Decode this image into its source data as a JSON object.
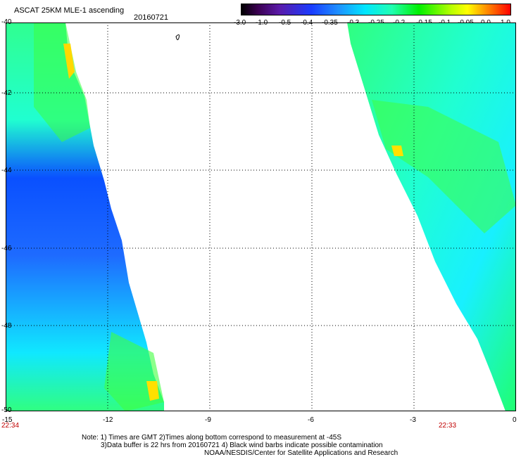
{
  "header": {
    "title": "ASCAT 25KM MLE-1 ascending",
    "date": "20160721"
  },
  "colorbar": {
    "labels": [
      "-3.0",
      "-1.0",
      "-0.5",
      "-0.4",
      "-0.35",
      "-0.3",
      "-0.25",
      "-0.2",
      "-0.15",
      "-0.1",
      "-0.05",
      "0.0",
      "1.0"
    ]
  },
  "axes": {
    "y_labels": [
      "-40",
      "-42",
      "-44",
      "-46",
      "-48",
      "-50"
    ],
    "x_labels": [
      "-15",
      "-12",
      "-9",
      "-6",
      "-3",
      "0"
    ],
    "time_left": "22:34",
    "time_right": "22:33"
  },
  "notes": {
    "line1": "Note: 1) Times are GMT 2)Times along bottom correspond to measurement at -45S",
    "line2": "3)Data buffer is 22 hrs from 20160721 4) Black wind barbs indicate possible contamination",
    "line3": "NOAA/NESDIS/Center for Satellite Applications and Research"
  },
  "map": {
    "lon_range": [
      -15,
      0
    ],
    "lat_range": [
      -50,
      -40
    ],
    "colors": {
      "high": "#ffff00",
      "mid": "#00ff40",
      "low": "#00ffff",
      "lower": "#1e90ff",
      "lowest": "#0050ff"
    }
  }
}
